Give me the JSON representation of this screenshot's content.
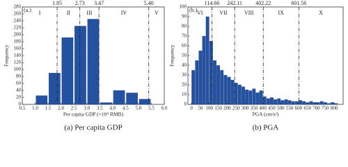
{
  "chart_data": [
    {
      "type": "histogram",
      "panel_label": "(a.)",
      "caption": "(a) Per capita GDP",
      "xlabel": "Per capita GDP (×10⁴ RMB)",
      "ylabel": "Frequency",
      "color": "#2352a3",
      "bins": [
        1.0,
        1.5,
        2.0,
        2.5,
        3.0,
        3.5,
        4.0,
        4.5,
        5.0,
        5.5
      ],
      "counts": [
        25,
        90,
        192,
        225,
        245,
        5,
        40,
        33,
        15
      ],
      "xlim": [
        0.5,
        6.0
      ],
      "xticks": [
        0.5,
        {
          "value": 1,
          "label": "1.0"
        },
        1.5,
        {
          "value": 2,
          "label": "2.0"
        },
        2.5,
        {
          "value": 3,
          "label": "3.0"
        },
        3.5,
        {
          "value": 4,
          "label": "4.0"
        },
        4.5,
        {
          "value": 5,
          "label": "5.0"
        },
        5.5,
        {
          "value": 6,
          "label": "6.0"
        }
      ],
      "ylim": [
        0,
        280
      ],
      "yticks": [
        0,
        20,
        40,
        60,
        80,
        100,
        120,
        140,
        160,
        180,
        200,
        220,
        240,
        260,
        280
      ],
      "thresholds": [
        1.85,
        2.73,
        3.47,
        {
          "value": 5.4,
          "label": "5.40"
        }
      ],
      "regions": [
        "I",
        "II",
        "III",
        "IV",
        "V"
      ]
    },
    {
      "type": "histogram",
      "panel_label": "(b.)",
      "caption": "(b) PGA",
      "xlabel": "PGA (cm/s²)",
      "ylabel": "Frequency",
      "color": "#2352a3",
      "bins": [
        0,
        20,
        40,
        60,
        80,
        100,
        120,
        140,
        160,
        180,
        200,
        220,
        240,
        260,
        280,
        300,
        320,
        340,
        360,
        380,
        400,
        420,
        440,
        460,
        480,
        500,
        520,
        540,
        560,
        580,
        600,
        620,
        640,
        660,
        680,
        700,
        720,
        740,
        760,
        780,
        800,
        820
      ],
      "counts": [
        35,
        45,
        55,
        70,
        90,
        65,
        45,
        40,
        35,
        30,
        28,
        25,
        22,
        20,
        18,
        15,
        14,
        16,
        12,
        14,
        8,
        6,
        7,
        5,
        6,
        4,
        5,
        4,
        3,
        3,
        4,
        3,
        2,
        3,
        2,
        2,
        3,
        2,
        1,
        2,
        1
      ],
      "xlim": [
        -20,
        850
      ],
      "xticks": [
        0,
        50,
        100,
        150,
        200,
        250,
        300,
        350,
        400,
        450,
        500,
        550,
        600,
        650,
        700,
        750,
        800
      ],
      "ylim": [
        0,
        100
      ],
      "yticks": [
        0,
        10,
        20,
        30,
        40,
        50,
        60,
        70,
        80,
        90,
        100
      ],
      "thresholds": [
        114.66,
        242.11,
        402.22,
        601.56
      ],
      "regions": [
        "VI",
        "VII",
        "VIII",
        "IX",
        "X"
      ]
    }
  ]
}
